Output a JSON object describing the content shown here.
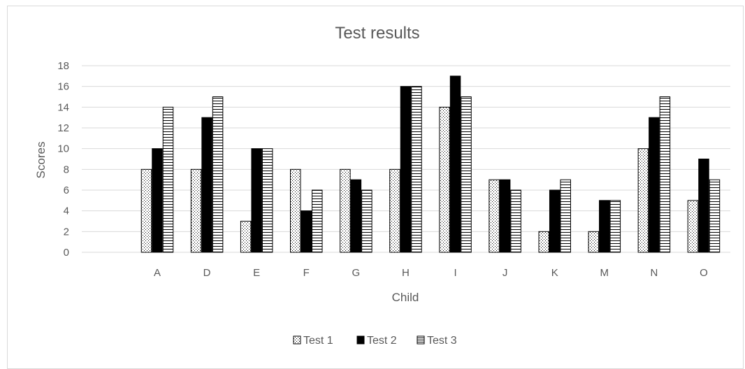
{
  "chart_data": {
    "type": "bar",
    "title": "Test results",
    "xlabel": "Child",
    "ylabel": "Scores",
    "categories": [
      "A",
      "D",
      "E",
      "F",
      "G",
      "H",
      "I",
      "J",
      "K",
      "M",
      "N",
      "O"
    ],
    "series": [
      {
        "name": "Test 1",
        "values": [
          8,
          8,
          3,
          8,
          8,
          8,
          14,
          7,
          2,
          2,
          10,
          5
        ],
        "pattern": "dots"
      },
      {
        "name": "Test 2",
        "values": [
          10,
          13,
          10,
          4,
          7,
          16,
          17,
          7,
          6,
          5,
          13,
          9
        ],
        "pattern": "solid"
      },
      {
        "name": "Test 3",
        "values": [
          14,
          15,
          10,
          6,
          6,
          16,
          15,
          6,
          7,
          5,
          15,
          7
        ],
        "pattern": "hlines"
      }
    ],
    "ylim": [
      0,
      18
    ],
    "yticks": [
      0,
      2,
      4,
      6,
      8,
      10,
      12,
      14,
      16,
      18
    ],
    "grid": true,
    "legend_position": "bottom",
    "colors": {
      "gridline": "#d9d9d9",
      "text": "#595959",
      "bar_fill": "#000000",
      "bar_outline": "#000000"
    }
  }
}
